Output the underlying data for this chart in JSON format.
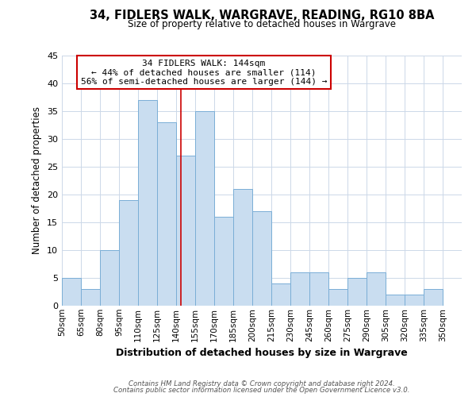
{
  "title": "34, FIDLERS WALK, WARGRAVE, READING, RG10 8BA",
  "subtitle": "Size of property relative to detached houses in Wargrave",
  "xlabel": "Distribution of detached houses by size in Wargrave",
  "ylabel": "Number of detached properties",
  "bin_labels": [
    "50sqm",
    "65sqm",
    "80sqm",
    "95sqm",
    "110sqm",
    "125sqm",
    "140sqm",
    "155sqm",
    "170sqm",
    "185sqm",
    "200sqm",
    "215sqm",
    "230sqm",
    "245sqm",
    "260sqm",
    "275sqm",
    "290sqm",
    "305sqm",
    "320sqm",
    "335sqm",
    "350sqm"
  ],
  "bin_edges": [
    50,
    65,
    80,
    95,
    110,
    125,
    140,
    155,
    170,
    185,
    200,
    215,
    230,
    245,
    260,
    275,
    290,
    305,
    320,
    335,
    350
  ],
  "counts": [
    5,
    3,
    10,
    19,
    37,
    33,
    27,
    35,
    16,
    21,
    17,
    4,
    6,
    6,
    3,
    5,
    6,
    2,
    2,
    3
  ],
  "bar_color": "#c9ddf0",
  "bar_edge_color": "#7aaed6",
  "property_size": 144,
  "vline_color": "#cc0000",
  "annotation_text": "34 FIDLERS WALK: 144sqm\n← 44% of detached houses are smaller (114)\n56% of semi-detached houses are larger (144) →",
  "annotation_box_edge_color": "#cc0000",
  "annotation_box_face_color": "#ffffff",
  "footer_line1": "Contains HM Land Registry data © Crown copyright and database right 2024.",
  "footer_line2": "Contains public sector information licensed under the Open Government Licence v3.0.",
  "ylim": [
    0,
    45
  ],
  "yticks": [
    0,
    5,
    10,
    15,
    20,
    25,
    30,
    35,
    40,
    45
  ],
  "background_color": "#ffffff",
  "grid_color": "#ccd8e8"
}
